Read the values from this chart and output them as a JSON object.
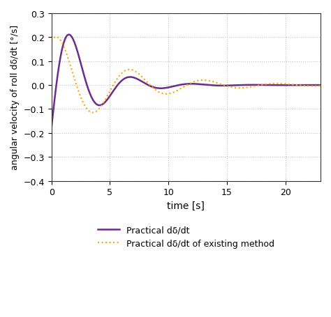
{
  "title": "",
  "xlabel": "time [s]",
  "ylabel": "angular velocity of roll dδ/dt [°/s]",
  "xlim": [
    0,
    23
  ],
  "ylim": [
    -0.4,
    0.3
  ],
  "yticks": [
    -0.4,
    -0.3,
    -0.2,
    -0.1,
    0.0,
    0.1,
    0.2,
    0.3
  ],
  "xticks": [
    0,
    5,
    10,
    15,
    20
  ],
  "line1_color": "#6B2D8B",
  "line2_color": "#FFA500",
  "line1_label": "Practical dδ/dt",
  "line2_label": "Practical dδ/dt of existing method",
  "bg_color": "#FFFFFF",
  "grid_color": "#BBBBBB"
}
